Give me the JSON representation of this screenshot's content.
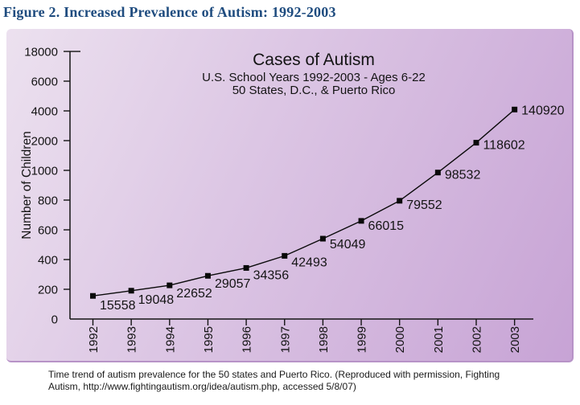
{
  "figure": {
    "title": "Figure 2. Increased Prevalence of Autism: 1992-2003"
  },
  "caption": {
    "line1": "Time trend of autism prevalence for the 50 states and Puerto Rico. (Reproduced with permission, Fighting",
    "line2": "Autism, http://www.fightingautism.org/idea/autism.php, accessed 5/8/07)"
  },
  "colors": {
    "figure_title": "#1f4c7f",
    "chart_ink": "#141414",
    "panel_gradient_top_left": "#ece1ef",
    "panel_gradient_mid": "#dcc6e4",
    "panel_gradient_bottom_right": "#c7a3d5",
    "panel_edge": "#b793c7",
    "caption_text": "#1a1a1a"
  },
  "chart_data": {
    "type": "line",
    "title": "Cases of Autism",
    "subtitle1": "U.S. School Years 1992-2003 - Ages 6-22",
    "subtitle2": "50 States, D.C., & Puerto Rico",
    "ylabel": "Number of Children",
    "xlabel": "",
    "categories": [
      1992,
      1993,
      1994,
      1995,
      1996,
      1997,
      1998,
      1999,
      2000,
      2001,
      2002,
      2003
    ],
    "values": [
      15558,
      19048,
      22652,
      29057,
      34356,
      42493,
      54049,
      66015,
      79552,
      98532,
      118602,
      140920
    ],
    "point_labels": [
      "15558",
      "19048",
      "22652",
      "29057",
      "34356",
      "42493",
      "54049",
      "66015",
      "79552",
      "98532",
      "118602",
      "140920"
    ],
    "y_axis": {
      "tick_labels": [
        "0",
        "200",
        "400",
        "600",
        "800",
        "1000",
        "2000",
        "4000",
        "6000",
        "18000"
      ],
      "ticks_evenly_spaced": true,
      "points_plotted_linear_range": [
        0,
        180000
      ]
    },
    "grid": false,
    "legend": null,
    "marker": "square",
    "line_color": "#0a0a0a"
  }
}
